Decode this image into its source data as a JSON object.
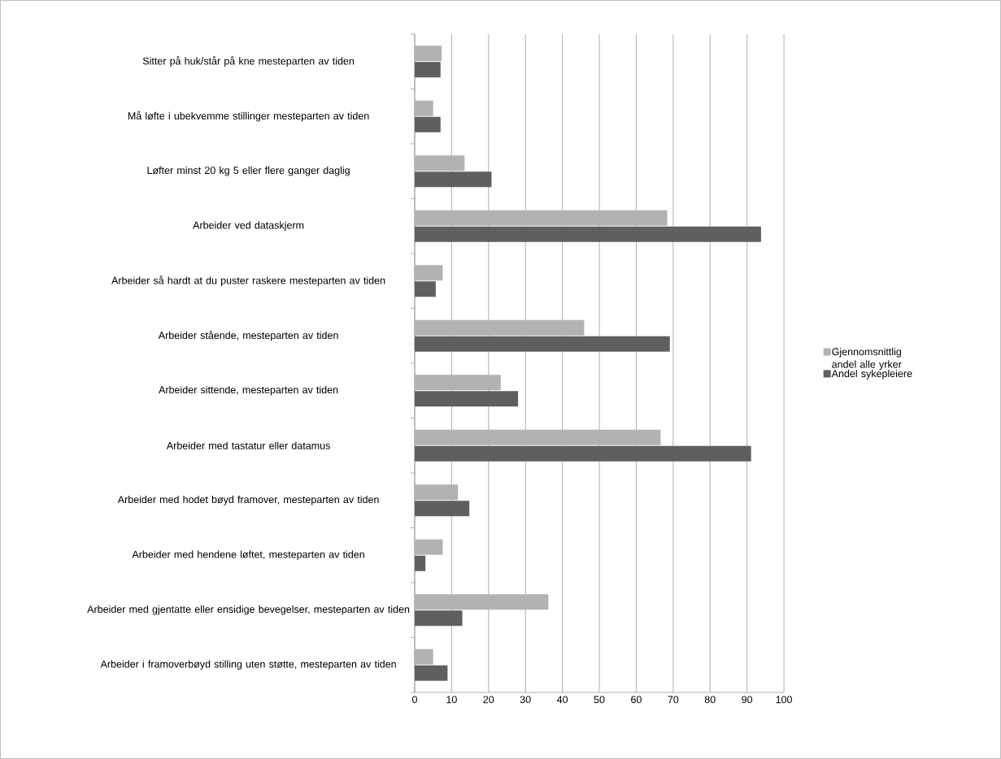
{
  "chart_data": {
    "type": "bar",
    "orientation": "horizontal",
    "categories": [
      "Sitter på huk/står på kne mesteparten av tiden",
      "Må løfte i ubekvemme stillinger mesteparten av tiden",
      "Løfter minst 20 kg 5 eller flere ganger daglig",
      "Arbeider ved dataskjerm",
      "Arbeider så hardt at du puster raskere mesteparten av tiden",
      "Arbeider stående, mesteparten av tiden",
      "Arbeider sittende, mesteparten av tiden",
      "Arbeider med tastatur eller datamus",
      "Arbeider med hodet bøyd framover, mesteparten av tiden",
      "Arbeider med hendene løftet, mesteparten av tiden",
      "Arbeider med gjentatte eller ensidige bevegelser, mesteparten av tiden",
      "Arbeider i framoverbøyd stilling uten støtte, mesteparten av tiden"
    ],
    "series": [
      {
        "name": "Gjennomsnittlig andel alle yrker",
        "color": "#b2b2b2",
        "values": [
          7.3,
          5.0,
          13.5,
          68.4,
          7.6,
          45.9,
          23.3,
          66.6,
          11.7,
          7.6,
          36.2,
          5.0
        ]
      },
      {
        "name": "Andel sykepleiere",
        "color": "#5f5f5f",
        "values": [
          7.0,
          7.0,
          20.8,
          93.8,
          5.7,
          69.1,
          28.0,
          91.1,
          14.8,
          2.9,
          12.9,
          8.9
        ]
      }
    ],
    "xlim": [
      0,
      100
    ],
    "xticks": [
      0,
      10,
      20,
      30,
      40,
      50,
      60,
      70,
      80,
      90,
      100
    ],
    "grid": "x",
    "legend": "right"
  }
}
